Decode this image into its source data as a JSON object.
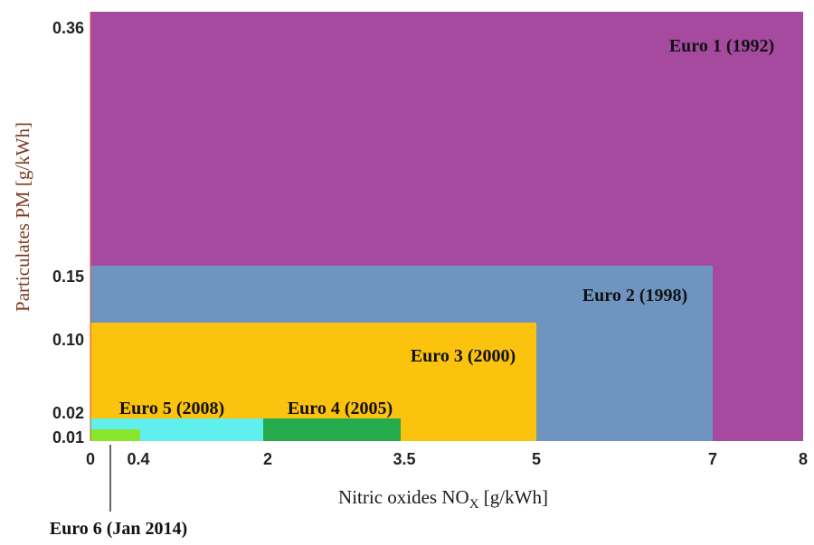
{
  "chart_data": {
    "type": "area",
    "xlabel_main": "Nitric oxides NO",
    "xlabel_sub": "X",
    "xlabel_unit": " [g/kWh]",
    "ylabel": "Particulates PM [g/kWh]",
    "x_ticks": [
      "0",
      "0.4",
      "2",
      "3.5",
      "5",
      "7",
      "8"
    ],
    "y_ticks": [
      "0.36",
      "0.15",
      "0.10",
      "0.02",
      "0.01"
    ],
    "x_scale": "non-linear (tick positions not proportional)",
    "y_scale": "non-linear (tick positions not proportional)",
    "series": [
      {
        "name": "Euro 1 (1992)",
        "nox": 8,
        "pm": 0.36,
        "color": "#a64aa0"
      },
      {
        "name": "Euro 2 (1998)",
        "nox": 7,
        "pm": 0.15,
        "color": "#6f94c0"
      },
      {
        "name": "Euro 3 (2000)",
        "nox": 5,
        "pm": 0.1,
        "color": "#fbc20e"
      },
      {
        "name": "Euro 4 (2005)",
        "nox": 3.5,
        "pm": 0.02,
        "color": "#25aa4c"
      },
      {
        "name": "Euro 5 (2008)",
        "nox": 2,
        "pm": 0.02,
        "color": "#5ff0ee"
      },
      {
        "name": "Euro 6 (Jan 2014)",
        "nox": 0.4,
        "pm": 0.01,
        "color": "#88e62c"
      }
    ]
  }
}
